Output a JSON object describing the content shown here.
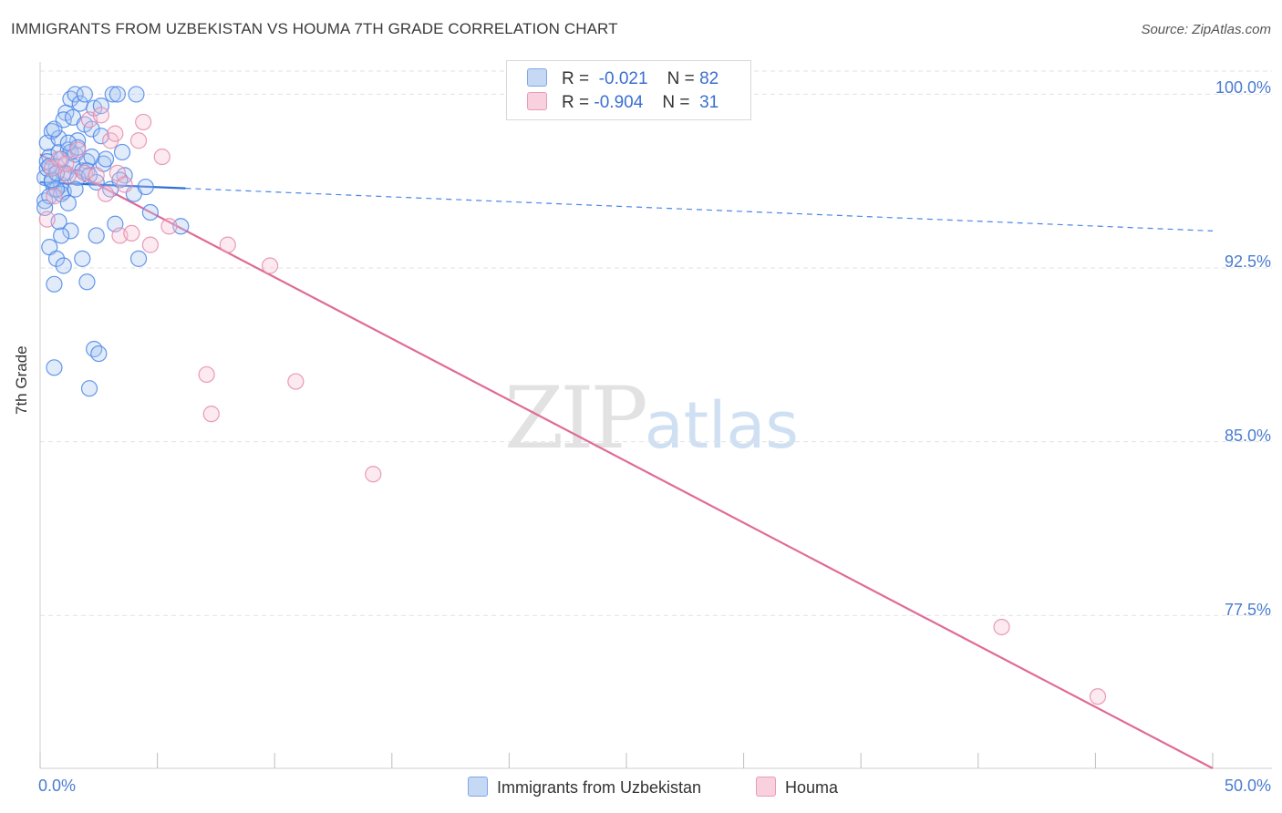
{
  "header": {
    "title": "IMMIGRANTS FROM UZBEKISTAN VS HOUMA 7TH GRADE CORRELATION CHART",
    "source": "Source: ZipAtlas.com"
  },
  "legend": {
    "rows": [
      {
        "r_label": "R =",
        "r_value": "-0.021",
        "n_label": "N =",
        "n_value": "82"
      },
      {
        "r_label": "R =",
        "r_value": "-0.904",
        "n_label": "N =",
        "n_value": "31"
      }
    ]
  },
  "bottom_legend": {
    "series1": "Immigrants from Uzbekistan",
    "series2": "Houma"
  },
  "watermark": {
    "zip": "ZIP",
    "atlas": "atlas"
  },
  "colors": {
    "blue": "#4a86e8",
    "blue_fill": "#a8c6f0",
    "pink": "#e06b97",
    "pink_fill": "#f4b6cb",
    "grid": "#e2e2e2"
  },
  "chart_data": {
    "type": "scatter",
    "title": "IMMIGRANTS FROM UZBEKISTAN VS HOUMA 7TH GRADE CORRELATION CHART",
    "xlabel": "",
    "ylabel": "7th Grade",
    "xlim": [
      0,
      50
    ],
    "ylim": [
      70.9,
      101.0
    ],
    "x_tick_labels": [
      "0.0%",
      "50.0%"
    ],
    "y_ticks": [
      100.0,
      92.5,
      85.0,
      77.5
    ],
    "y_tick_labels": [
      "100.0%",
      "92.5%",
      "85.0%",
      "77.5%"
    ],
    "grid": true,
    "series": [
      {
        "name": "Immigrants from Uzbekistan",
        "R": -0.021,
        "N": 82,
        "color": "#4a86e8",
        "trend": {
          "x0": 0,
          "y0": 96.2,
          "x1": 50,
          "y1": 94.1,
          "solid_until": 6.2
        },
        "points": [
          [
            0.2,
            96.4
          ],
          [
            0.3,
            96.8
          ],
          [
            0.4,
            97.3
          ],
          [
            0.5,
            96.2
          ],
          [
            0.6,
            95.9
          ],
          [
            0.7,
            96.9
          ],
          [
            0.8,
            97.5
          ],
          [
            0.9,
            96.1
          ],
          [
            1.0,
            95.8
          ],
          [
            1.1,
            96.6
          ],
          [
            0.3,
            97.9
          ],
          [
            0.5,
            98.4
          ],
          [
            0.8,
            98.1
          ],
          [
            1.2,
            97.6
          ],
          [
            1.4,
            96.9
          ],
          [
            1.5,
            97.4
          ],
          [
            1.6,
            98.0
          ],
          [
            1.8,
            96.7
          ],
          [
            2.0,
            97.1
          ],
          [
            2.2,
            97.3
          ],
          [
            1.1,
            99.2
          ],
          [
            1.3,
            99.8
          ],
          [
            1.5,
            100.0
          ],
          [
            1.7,
            99.6
          ],
          [
            1.9,
            100.0
          ],
          [
            2.3,
            99.4
          ],
          [
            2.6,
            99.5
          ],
          [
            3.1,
            100.0
          ],
          [
            3.3,
            100.0
          ],
          [
            4.1,
            100.0
          ],
          [
            0.6,
            98.5
          ],
          [
            1.0,
            98.9
          ],
          [
            1.4,
            99.0
          ],
          [
            1.9,
            98.7
          ],
          [
            2.2,
            98.5
          ],
          [
            2.6,
            98.2
          ],
          [
            3.5,
            97.5
          ],
          [
            0.2,
            95.4
          ],
          [
            0.4,
            95.6
          ],
          [
            0.9,
            95.7
          ],
          [
            1.2,
            95.3
          ],
          [
            0.7,
            95.9
          ],
          [
            1.0,
            96.6
          ],
          [
            1.3,
            97.5
          ],
          [
            1.6,
            97.7
          ],
          [
            2.0,
            96.7
          ],
          [
            2.4,
            96.2
          ],
          [
            3.0,
            95.9
          ],
          [
            3.6,
            96.5
          ],
          [
            4.0,
            95.7
          ],
          [
            4.5,
            96.0
          ],
          [
            4.7,
            94.9
          ],
          [
            6.0,
            94.3
          ],
          [
            3.2,
            94.4
          ],
          [
            2.4,
            93.9
          ],
          [
            1.3,
            94.1
          ],
          [
            0.9,
            93.9
          ],
          [
            0.8,
            94.5
          ],
          [
            0.4,
            93.4
          ],
          [
            0.7,
            92.9
          ],
          [
            1.0,
            92.6
          ],
          [
            1.8,
            92.9
          ],
          [
            4.2,
            92.9
          ],
          [
            0.6,
            91.8
          ],
          [
            2.0,
            91.9
          ],
          [
            2.3,
            89.0
          ],
          [
            2.5,
            88.8
          ],
          [
            0.6,
            88.2
          ],
          [
            2.1,
            87.3
          ],
          [
            0.3,
            97.1
          ],
          [
            0.5,
            96.3
          ],
          [
            1.6,
            96.4
          ],
          [
            2.7,
            97.0
          ],
          [
            1.2,
            97.9
          ],
          [
            0.9,
            97.2
          ],
          [
            2.1,
            96.5
          ],
          [
            0.4,
            96.9
          ],
          [
            0.7,
            96.6
          ],
          [
            1.5,
            95.9
          ],
          [
            2.8,
            97.2
          ],
          [
            3.4,
            96.3
          ],
          [
            0.2,
            95.1
          ]
        ]
      },
      {
        "name": "Houma",
        "R": -0.904,
        "N": 31,
        "color": "#e06b97",
        "trend": {
          "x0": 0,
          "y0": 97.4,
          "x1": 50,
          "y1": 70.9
        },
        "points": [
          [
            0.3,
            94.6
          ],
          [
            0.5,
            96.8
          ],
          [
            0.8,
            97.2
          ],
          [
            1.2,
            96.5
          ],
          [
            1.6,
            97.6
          ],
          [
            1.9,
            96.6
          ],
          [
            2.1,
            98.9
          ],
          [
            2.4,
            96.5
          ],
          [
            2.8,
            95.7
          ],
          [
            3.0,
            98.0
          ],
          [
            3.2,
            98.3
          ],
          [
            3.3,
            96.6
          ],
          [
            3.4,
            93.9
          ],
          [
            3.6,
            96.1
          ],
          [
            3.9,
            94.0
          ],
          [
            4.2,
            98.0
          ],
          [
            4.4,
            98.8
          ],
          [
            4.7,
            93.5
          ],
          [
            5.2,
            97.3
          ],
          [
            5.5,
            94.3
          ],
          [
            7.1,
            87.9
          ],
          [
            7.3,
            86.2
          ],
          [
            8.0,
            93.5
          ],
          [
            9.8,
            92.6
          ],
          [
            10.9,
            87.6
          ],
          [
            14.2,
            83.6
          ],
          [
            41.0,
            77.0
          ],
          [
            45.1,
            74.0
          ],
          [
            1.1,
            97.0
          ],
          [
            0.6,
            95.6
          ],
          [
            2.6,
            99.1
          ]
        ]
      }
    ]
  }
}
